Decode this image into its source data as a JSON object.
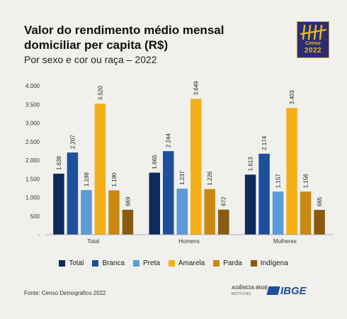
{
  "title": "Valor do rendimento médio mensal domiciliar per capita (R$)",
  "subtitle": "Por sexo e cor ou raça – 2022",
  "logo": {
    "censo": "Censo",
    "year": "2022"
  },
  "source": "Fonte: Censo Demográfico 2022",
  "footer": {
    "agencia": "AGÊNCIA IBGE",
    "noticias": "NOTÍCIAS",
    "ibge": "IBGE"
  },
  "chart_data": {
    "type": "bar",
    "categories": [
      "Total",
      "Homens",
      "Mulheres"
    ],
    "ylim": [
      0,
      4000
    ],
    "yticks": [
      0,
      500,
      1000,
      1500,
      2000,
      2500,
      3000,
      3500,
      4000
    ],
    "ytick_labels": [
      "-",
      "500",
      "1.000",
      "1.500",
      "2.000",
      "2.500",
      "3.000",
      "3.500",
      "4.000"
    ],
    "legend_position": "bottom",
    "grid": false,
    "series": [
      {
        "name": "Total",
        "color": "#0e2a5c",
        "values": [
          1638,
          1665,
          1613
        ],
        "labels": [
          "1.638",
          "1.665",
          "1.613"
        ]
      },
      {
        "name": "Branca",
        "color": "#1f4f9a",
        "values": [
          2207,
          2244,
          2174
        ],
        "labels": [
          "2.207",
          "2.244",
          "2.174"
        ]
      },
      {
        "name": "Preta",
        "color": "#5b9bd8",
        "values": [
          1198,
          1237,
          1157
        ],
        "labels": [
          "1.198",
          "1.237",
          "1.157"
        ]
      },
      {
        "name": "Amarela",
        "color": "#f5b019",
        "values": [
          3520,
          3649,
          3403
        ],
        "labels": [
          "3.520",
          "3.649",
          "3.403"
        ]
      },
      {
        "name": "Parda",
        "color": "#c98812",
        "values": [
          1190,
          1226,
          1156
        ],
        "labels": [
          "1.190",
          "1.226",
          "1.156"
        ]
      },
      {
        "name": "Indígena",
        "color": "#8a5a12",
        "values": [
          669,
          672,
          665
        ],
        "labels": [
          "669",
          "672",
          "665"
        ]
      }
    ]
  }
}
